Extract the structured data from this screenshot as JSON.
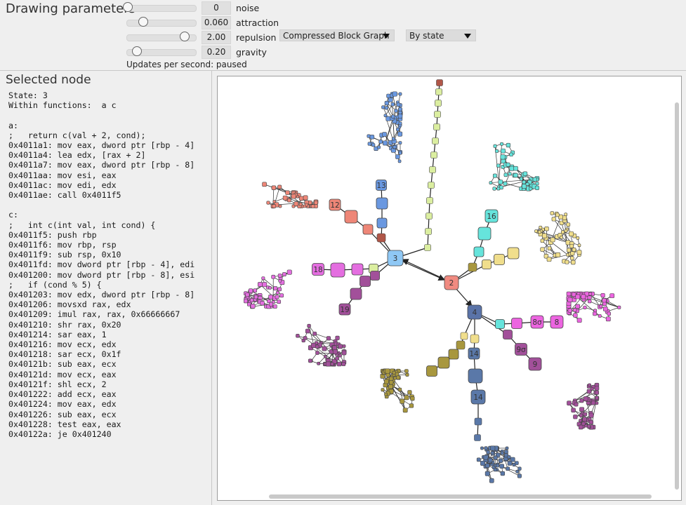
{
  "controls": {
    "title": "Drawing parameters",
    "params": [
      {
        "label": "noise",
        "value": "0",
        "level": 0.0
      },
      {
        "label": "attraction",
        "value": "0.060",
        "level": 0.26
      },
      {
        "label": "repulsion",
        "value": "2.00",
        "level": 0.94
      },
      {
        "label": "gravity",
        "value": "0.20",
        "level": 0.15
      }
    ],
    "graph_mode": {
      "selected": "Compressed Block Graph"
    },
    "color_mode": {
      "selected": "By state"
    },
    "updates_text": "Updates per second: paused"
  },
  "selected_node": {
    "title": "Selected node",
    "lines": [
      "State: 3",
      "Within functions:  a c",
      "",
      "a:",
      ";   return c(val + 2, cond);",
      "0x4011a1: mov eax, dword ptr [rbp - 4]",
      "0x4011a4: lea edx, [rax + 2]",
      "0x4011a7: mov eax, dword ptr [rbp - 8]",
      "0x4011aa: mov esi, eax",
      "0x4011ac: mov edi, edx",
      "0x4011ae: call 0x4011f5",
      "",
      "c:",
      ";   int c(int val, int cond) {",
      "0x4011f5: push rbp",
      "0x4011f6: mov rbp, rsp",
      "0x4011f9: sub rsp, 0x10",
      "0x4011fd: mov dword ptr [rbp - 4], edi",
      "0x401200: mov dword ptr [rbp - 8], esi",
      ";   if (cond % 5) {",
      "0x401203: mov edx, dword ptr [rbp - 8]",
      "0x401206: movsxd rax, edx",
      "0x401209: imul rax, rax, 0x66666667",
      "0x401210: shr rax, 0x20",
      "0x401214: sar eax, 1",
      "0x401216: mov ecx, edx",
      "0x401218: sar ecx, 0x1f",
      "0x40121b: sub eax, ecx",
      "0x40121d: mov ecx, eax",
      "0x40121f: shl ecx, 2",
      "0x401222: add ecx, eax",
      "0x401224: mov eax, edx",
      "0x401226: sub eax, ecx",
      "0x401228: test eax, eax",
      "0x40122a: je 0x401240"
    ]
  },
  "graph": {
    "labels": [
      "3",
      "2",
      "13",
      "12",
      "16",
      "18",
      "19",
      "4",
      "14",
      "14",
      "8σ",
      "8",
      "9σ",
      "9"
    ],
    "colors": {
      "s3": "#8fc8f5",
      "s2": "#f08a80",
      "s13": "#6a98e0",
      "s12": "#ee8677",
      "s16": "#66e4dc",
      "s18": "#e46ee0",
      "s19": "#a2509a",
      "s4": "#5a73a8",
      "s14": "#5a78a8",
      "s8": "#ec64e0",
      "s9": "#a2509a",
      "olive": "#a8973e",
      "yellow": "#f0de8c",
      "lime": "#dbeea0",
      "brown": "#b05648"
    }
  }
}
